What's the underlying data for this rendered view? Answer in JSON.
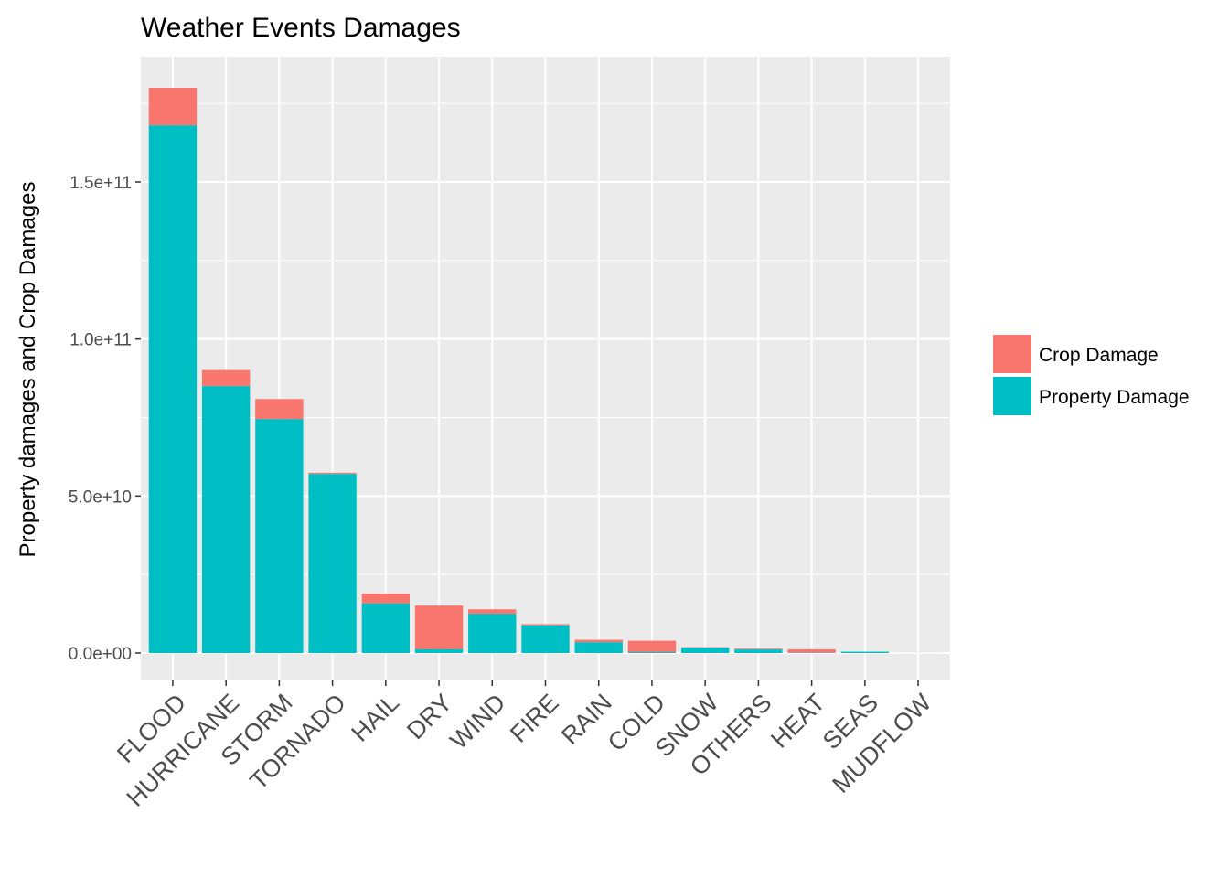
{
  "chart_data": {
    "type": "bar",
    "stacked": true,
    "title": "Weather Events Damages",
    "xlabel": "",
    "ylabel": "Property damages and Crop Damages",
    "ylim": [
      -9000000000,
      180000000000
    ],
    "yticks": [
      0,
      50000000000,
      100000000000,
      150000000000
    ],
    "ytick_labels": [
      "0.0e+00",
      "5.0e+10",
      "1.0e+11",
      "1.5e+11"
    ],
    "grid": true,
    "legend_position": "right",
    "categories": [
      "FLOOD",
      "HURRICANE",
      "STORM",
      "TORNADO",
      "HAIL",
      "DRY",
      "WIND",
      "FIRE",
      "RAIN",
      "COLD",
      "SNOW",
      "OTHERS",
      "HEAT",
      "SEAS",
      "MUDFLOW"
    ],
    "series": [
      {
        "name": "Property Damage",
        "color": "#00BFC4",
        "values": [
          168000000000,
          85000000000,
          74500000000,
          57000000000,
          15800000000,
          1200000000,
          12500000000,
          8800000000,
          3400000000,
          300000000,
          1700000000,
          1100000000,
          100000000,
          400000000,
          20000000
        ]
      },
      {
        "name": "Crop Damage",
        "color": "#F8766D",
        "values": [
          12000000000,
          5100000000,
          6400000000,
          400000000,
          3100000000,
          13900000000,
          1400000000,
          400000000,
          800000000,
          3600000000,
          150000000,
          300000000,
          1100000000,
          50000000,
          10000000
        ]
      }
    ],
    "legend_order": [
      "Crop Damage",
      "Property Damage"
    ]
  }
}
